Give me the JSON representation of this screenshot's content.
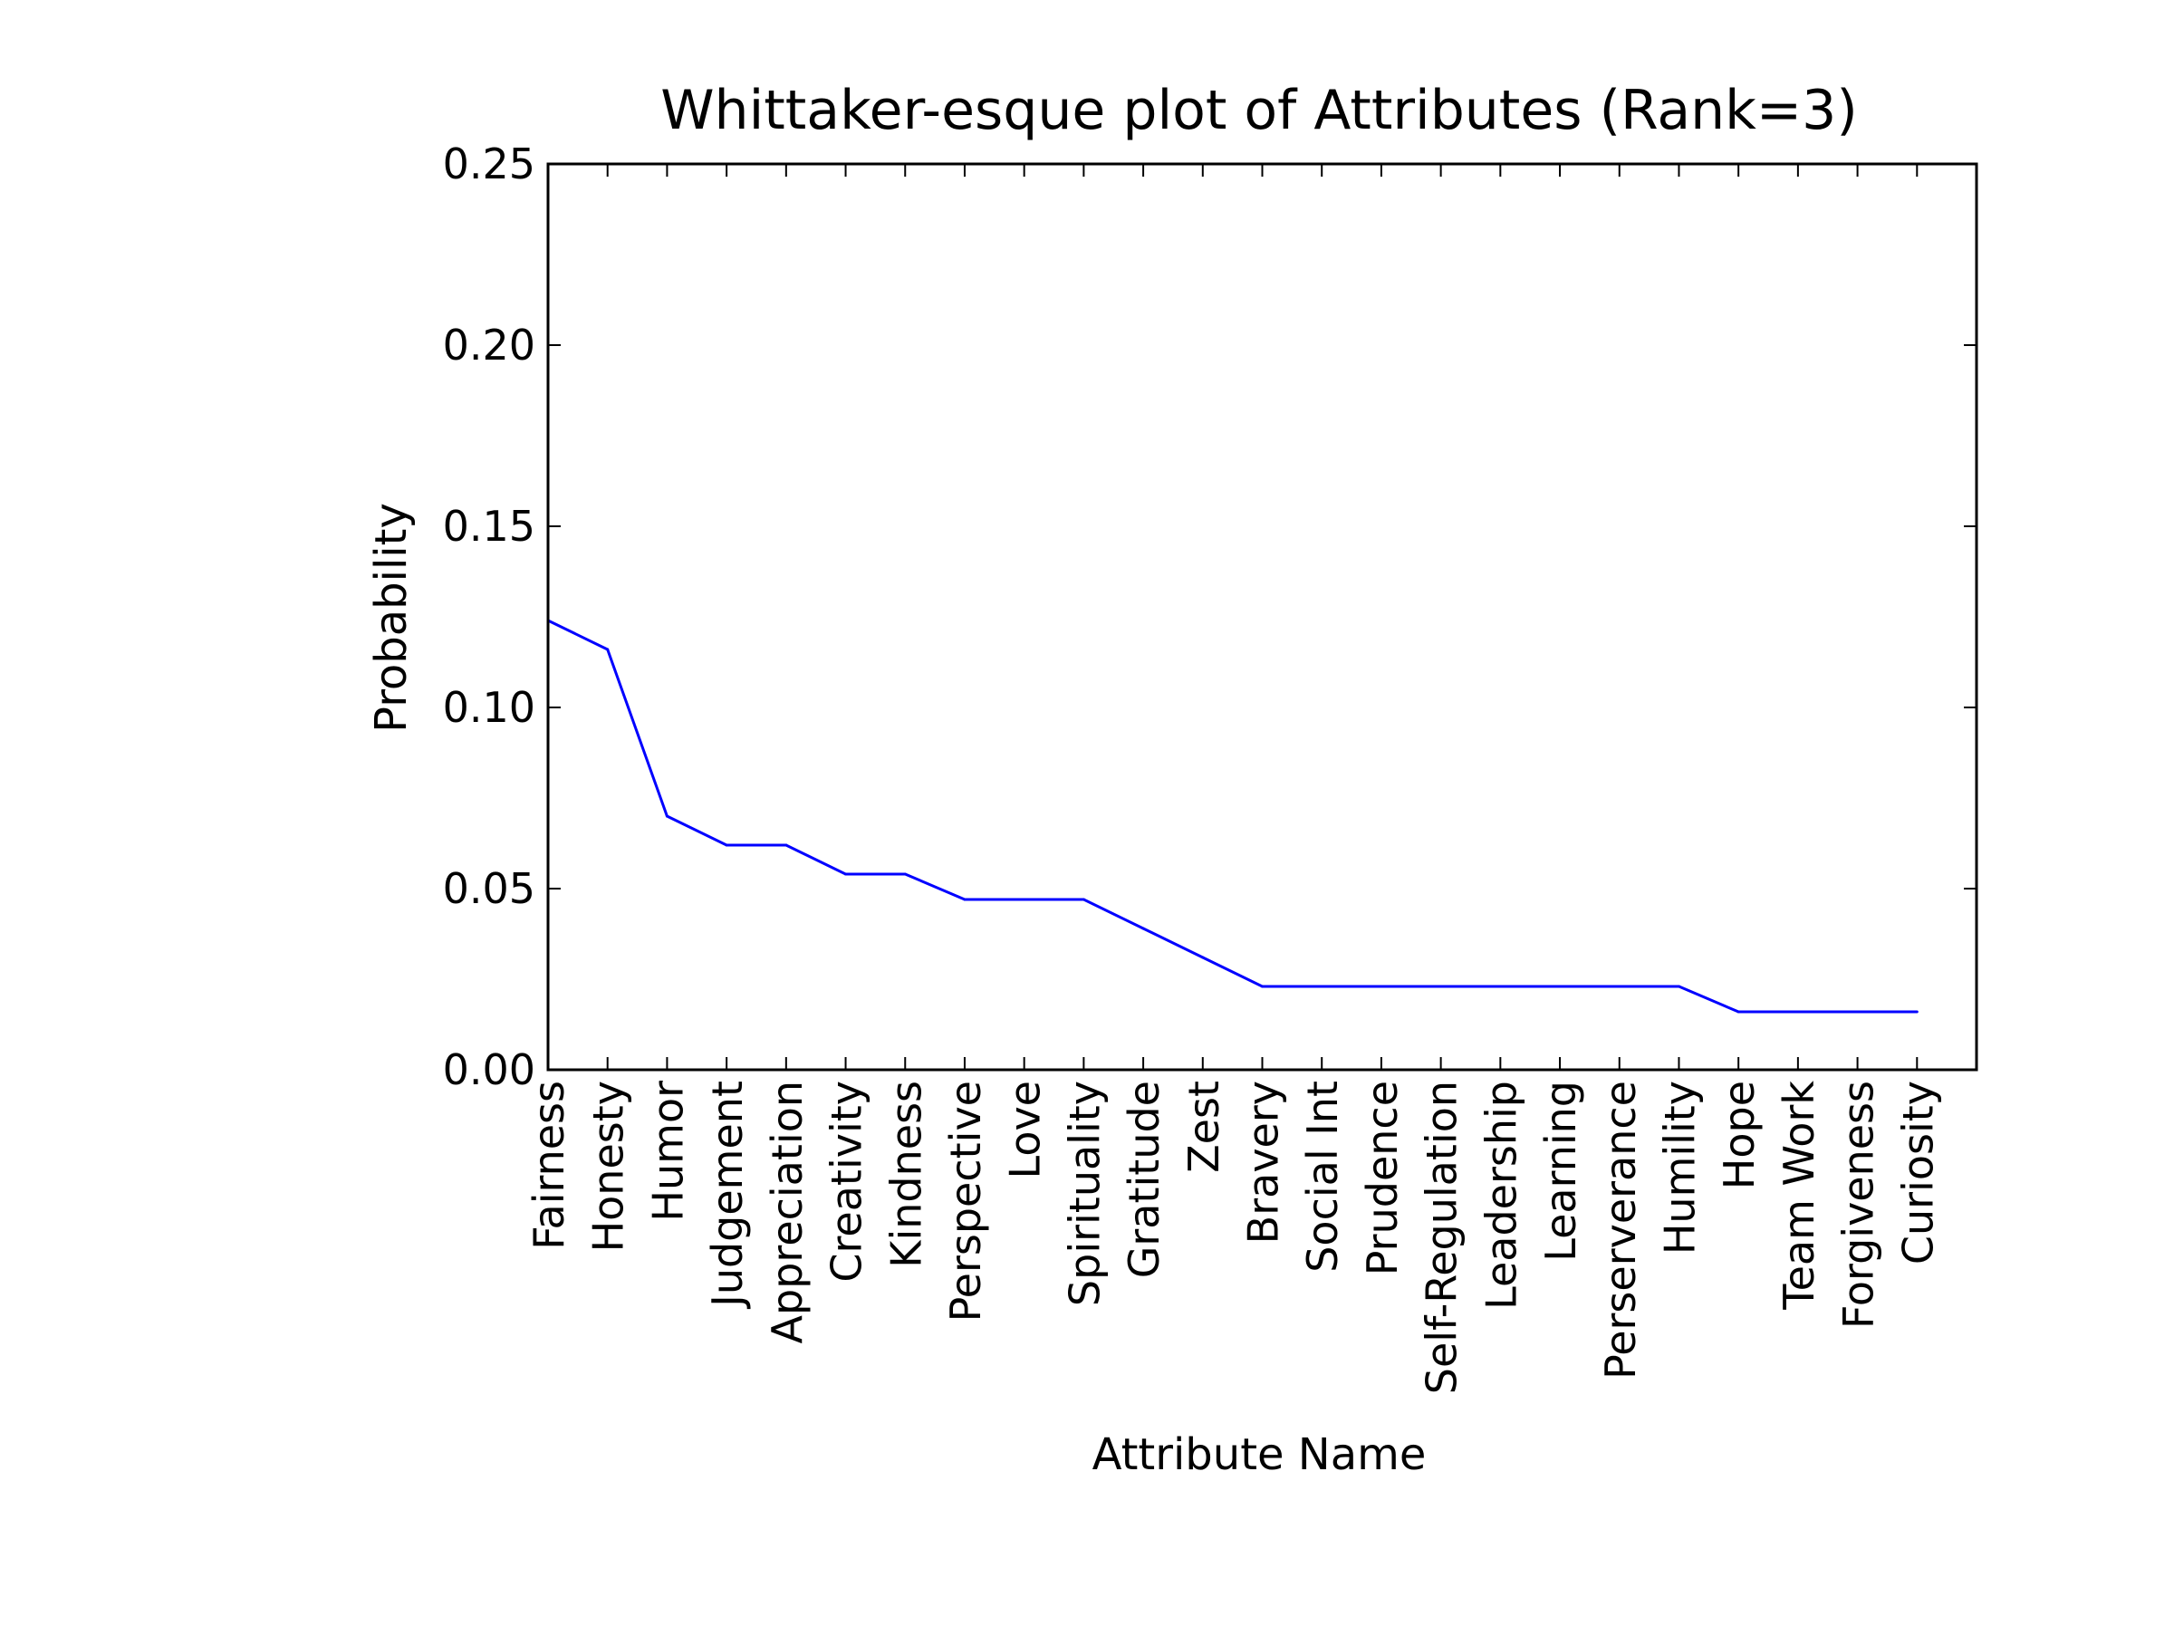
{
  "chart_data": {
    "type": "line",
    "title": "Whittaker-esque plot of Attributes (Rank=3)",
    "xlabel": "Attribute Name",
    "ylabel": "Probability",
    "ylim": [
      0.0,
      0.25
    ],
    "yticks": [
      "0.00",
      "0.05",
      "0.10",
      "0.15",
      "0.20",
      "0.25"
    ],
    "grid": false,
    "line_color": "#0000ff",
    "categories": [
      "Fairness",
      "Honesty",
      "Humor",
      "Judgement",
      "Appreciation",
      "Creativity",
      "Kindness",
      "Perspective",
      "Love",
      "Spirituality",
      "Gratitude",
      "Zest",
      "Bravery",
      "Social Int",
      "Prudence",
      "Self-Regulation",
      "Leadership",
      "Learning",
      "Perserverance",
      "Humility",
      "Hope",
      "Team Work",
      "Forgiveness",
      "Curiosity"
    ],
    "values": [
      0.124,
      0.116,
      0.07,
      0.062,
      0.062,
      0.054,
      0.054,
      0.047,
      0.047,
      0.047,
      0.039,
      0.031,
      0.023,
      0.023,
      0.023,
      0.023,
      0.023,
      0.023,
      0.023,
      0.023,
      0.016,
      0.016,
      0.016,
      0.016
    ]
  }
}
